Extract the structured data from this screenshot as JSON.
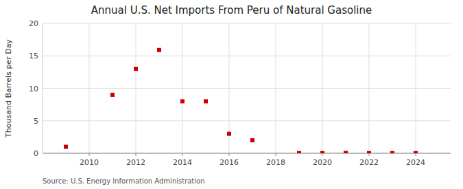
{
  "chart_data": {
    "type": "scatter",
    "title": "Annual U.S. Net Imports From Peru of Natural Gasoline",
    "y_label": "Thousand Barrels per Day",
    "source": "Source: U.S. Energy Information Administration",
    "x": [
      2009,
      2011,
      2012,
      2013,
      2014,
      2015,
      2016,
      2017,
      2019,
      2020,
      2021,
      2022,
      2023,
      2024
    ],
    "values": [
      1.0,
      9.0,
      13.0,
      15.9,
      8.0,
      8.0,
      3.0,
      2.0,
      0.02,
      0.02,
      0.05,
      0.02,
      0.02,
      0.02
    ],
    "color": "#cc0000",
    "marker": "square",
    "xlim": [
      2008.0,
      2025.5
    ],
    "xticks": [
      2010,
      2012,
      2014,
      2016,
      2018,
      2020,
      2022,
      2024
    ],
    "ylim": [
      0,
      20
    ],
    "yticks": [
      0,
      5,
      10,
      15,
      20
    ],
    "grid": true
  }
}
